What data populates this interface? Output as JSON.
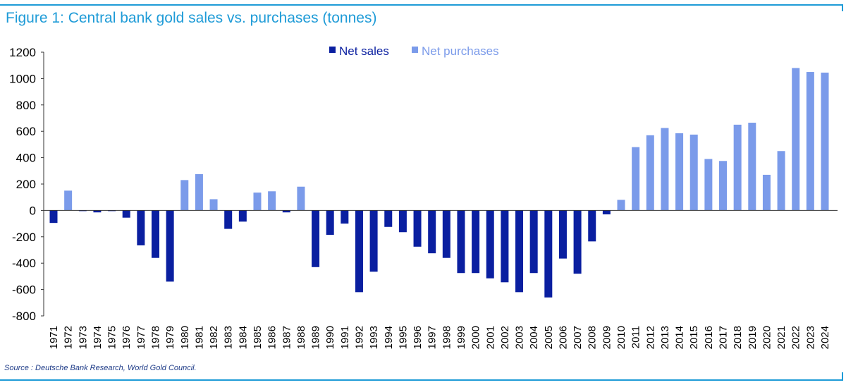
{
  "page": {
    "title": "Figure 1: Central bank gold sales vs. purchases (tonnes)",
    "source": "Source : Deutsche Bank Research, World Gold Council."
  },
  "colors": {
    "sales": "#0a1fa0",
    "purchases": "#7b9bea",
    "axis": "#333333",
    "title": "#1e9bd7"
  },
  "chart_data": {
    "type": "bar",
    "title": "Figure 1: Central bank gold sales vs. purchases (tonnes)",
    "xlabel": "",
    "ylabel": "",
    "ylim": [
      -800,
      1200
    ],
    "yticks": [
      1200,
      1000,
      800,
      600,
      400,
      200,
      0,
      -200,
      -400,
      -600,
      -800
    ],
    "grid": false,
    "legend": {
      "position": "top-center",
      "entries": [
        {
          "name": "Net sales",
          "color": "#0a1fa0"
        },
        {
          "name": "Net purchases",
          "color": "#7b9bea"
        }
      ]
    },
    "categories": [
      "1971",
      "1972",
      "1973",
      "1974",
      "1975",
      "1976",
      "1977",
      "1978",
      "1979",
      "1980",
      "1981",
      "1982",
      "1983",
      "1984",
      "1985",
      "1986",
      "1987",
      "1988",
      "1989",
      "1990",
      "1991",
      "1992",
      "1993",
      "1994",
      "1995",
      "1996",
      "1997",
      "1998",
      "1999",
      "2000",
      "2001",
      "2002",
      "2003",
      "2004",
      "2005",
      "2006",
      "2007",
      "2008",
      "2009",
      "2010",
      "2011",
      "2012",
      "2013",
      "2014",
      "2015",
      "2016",
      "2017",
      "2018",
      "2019",
      "2020",
      "2021",
      "2022",
      "2023",
      "2024"
    ],
    "series": [
      {
        "name": "Net sales",
        "values": [
          -95,
          0,
          -5,
          -15,
          -5,
          -55,
          -265,
          -360,
          -540,
          0,
          0,
          0,
          -140,
          -85,
          0,
          0,
          -15,
          0,
          -430,
          -185,
          -100,
          -620,
          -465,
          -125,
          -165,
          -275,
          -325,
          -360,
          -475,
          -475,
          -515,
          -545,
          -620,
          -475,
          -660,
          -365,
          -480,
          -235,
          -30,
          0,
          0,
          0,
          0,
          0,
          0,
          0,
          0,
          0,
          0,
          0,
          0,
          0,
          0,
          0
        ]
      },
      {
        "name": "Net purchases",
        "values": [
          0,
          150,
          0,
          0,
          0,
          0,
          0,
          0,
          0,
          230,
          275,
          85,
          0,
          0,
          135,
          145,
          0,
          180,
          0,
          0,
          0,
          0,
          0,
          0,
          0,
          0,
          0,
          0,
          0,
          0,
          0,
          0,
          0,
          0,
          0,
          0,
          0,
          0,
          0,
          80,
          480,
          570,
          625,
          585,
          575,
          390,
          375,
          650,
          665,
          270,
          450,
          1080,
          1050,
          1045
        ]
      }
    ]
  }
}
